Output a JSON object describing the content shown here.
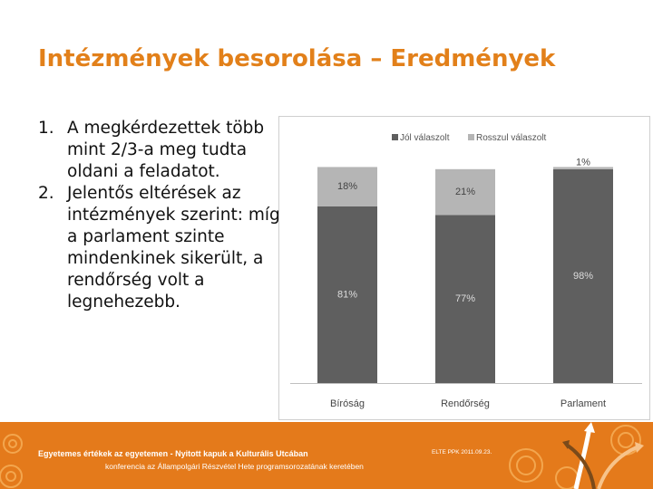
{
  "slide": {
    "title": "Intézmények besorolása – Eredmények",
    "bullets": [
      {
        "num": "1.",
        "text": "A megkérdezettek több mint 2/3-a meg tudta oldani a feladatot."
      },
      {
        "num": "2.",
        "text": "Jelentős eltérések az intézmények szerint: míg a parlament szinte mindenkinek sikerült, a rendőrség volt a legnehezebb."
      }
    ]
  },
  "chart_data": {
    "type": "bar",
    "stacked": true,
    "categories": [
      "Bíróság",
      "Rendőrség",
      "Parlament"
    ],
    "series": [
      {
        "name": "Jól válaszolt",
        "values": [
          81,
          77,
          98
        ],
        "labels": [
          "81%",
          "77%",
          "98%"
        ],
        "color": "#5f5f5f"
      },
      {
        "name": "Rosszul válaszolt",
        "values": [
          18,
          21,
          1
        ],
        "labels": [
          "18%",
          "21%",
          "1%"
        ],
        "color": "#b5b5b5"
      }
    ],
    "ylim": [
      0,
      100
    ],
    "legend": "top",
    "grid": false
  },
  "footer": {
    "line1": "Egyetemes értékek az egyetemen - Nyitott kapuk a Kulturális Utcában",
    "line2": "konferencia az Állampolgári Részvétel Hete programsorozatának keretében",
    "date": "ELTE PPK 2011.09.23.",
    "bg_color": "#e47a1b"
  }
}
